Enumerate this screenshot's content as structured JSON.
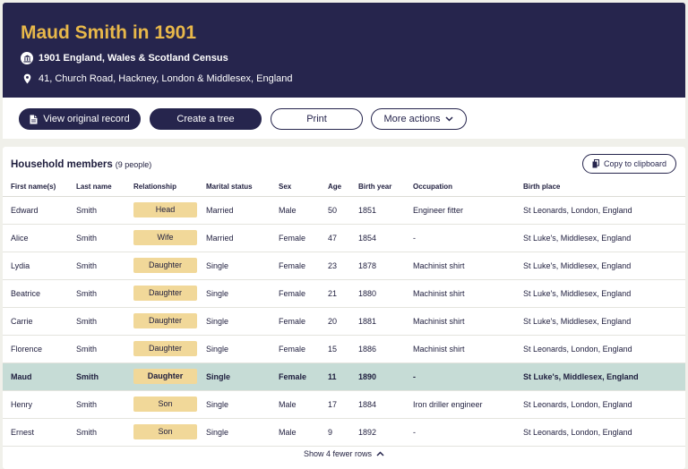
{
  "header": {
    "title": "Maud Smith in 1901",
    "census_label": "1901 England, Wales & Scotland Census",
    "census_icon": "government-building-icon",
    "address": "41, Church Road, Hackney, London & Middlesex, England",
    "address_icon": "location-pin-icon"
  },
  "actions": {
    "view_original": "View original record",
    "create_tree": "Create a tree",
    "print": "Print",
    "more_actions": "More actions"
  },
  "household": {
    "title": "Household members",
    "count": "(9 people)",
    "copy_label": "Copy to clipboard",
    "columns": {
      "first_name": "First name(s)",
      "last_name": "Last name",
      "relationship": "Relationship",
      "marital_status": "Marital status",
      "sex": "Sex",
      "age": "Age",
      "birth_year": "Birth year",
      "occupation": "Occupation",
      "birth_place": "Birth place"
    },
    "rows": [
      {
        "first": "Edward",
        "last": "Smith",
        "rel": "Head",
        "marital": "Married",
        "sex": "Male",
        "age": "50",
        "year": "1851",
        "occ": "Engineer fitter",
        "place": "St Leonards, London, England"
      },
      {
        "first": "Alice",
        "last": "Smith",
        "rel": "Wife",
        "marital": "Married",
        "sex": "Female",
        "age": "47",
        "year": "1854",
        "occ": "-",
        "place": "St Luke's, Middlesex, England"
      },
      {
        "first": "Lydia",
        "last": "Smith",
        "rel": "Daughter",
        "marital": "Single",
        "sex": "Female",
        "age": "23",
        "year": "1878",
        "occ": "Machinist shirt",
        "place": "St Luke's, Middlesex, England"
      },
      {
        "first": "Beatrice",
        "last": "Smith",
        "rel": "Daughter",
        "marital": "Single",
        "sex": "Female",
        "age": "21",
        "year": "1880",
        "occ": "Machinist shirt",
        "place": "St Luke's, Middlesex, England"
      },
      {
        "first": "Carrie",
        "last": "Smith",
        "rel": "Daughter",
        "marital": "Single",
        "sex": "Female",
        "age": "20",
        "year": "1881",
        "occ": "Machinist shirt",
        "place": "St Luke's, Middlesex, England"
      },
      {
        "first": "Florence",
        "last": "Smith",
        "rel": "Daughter",
        "marital": "Single",
        "sex": "Female",
        "age": "15",
        "year": "1886",
        "occ": "Machinist shirt",
        "place": "St Leonards, London, England"
      },
      {
        "first": "Maud",
        "last": "Smith",
        "rel": "Daughter",
        "marital": "Single",
        "sex": "Female",
        "age": "11",
        "year": "1890",
        "occ": "-",
        "place": "St Luke's, Middlesex, England",
        "highlighted": true
      },
      {
        "first": "Henry",
        "last": "Smith",
        "rel": "Son",
        "marital": "Single",
        "sex": "Male",
        "age": "17",
        "year": "1884",
        "occ": "Iron driller engineer",
        "place": "St Leonards, London, England"
      },
      {
        "first": "Ernest",
        "last": "Smith",
        "rel": "Son",
        "marital": "Single",
        "sex": "Male",
        "age": "9",
        "year": "1892",
        "occ": "-",
        "place": "St Leonards, London, England"
      }
    ],
    "show_fewer": "Show 4 fewer rows"
  },
  "colors": {
    "header_bg": "#26254d",
    "title_gold": "#e8b84a",
    "relationship_badge": "#f1d899",
    "highlight_row": "#c6dcd6"
  }
}
